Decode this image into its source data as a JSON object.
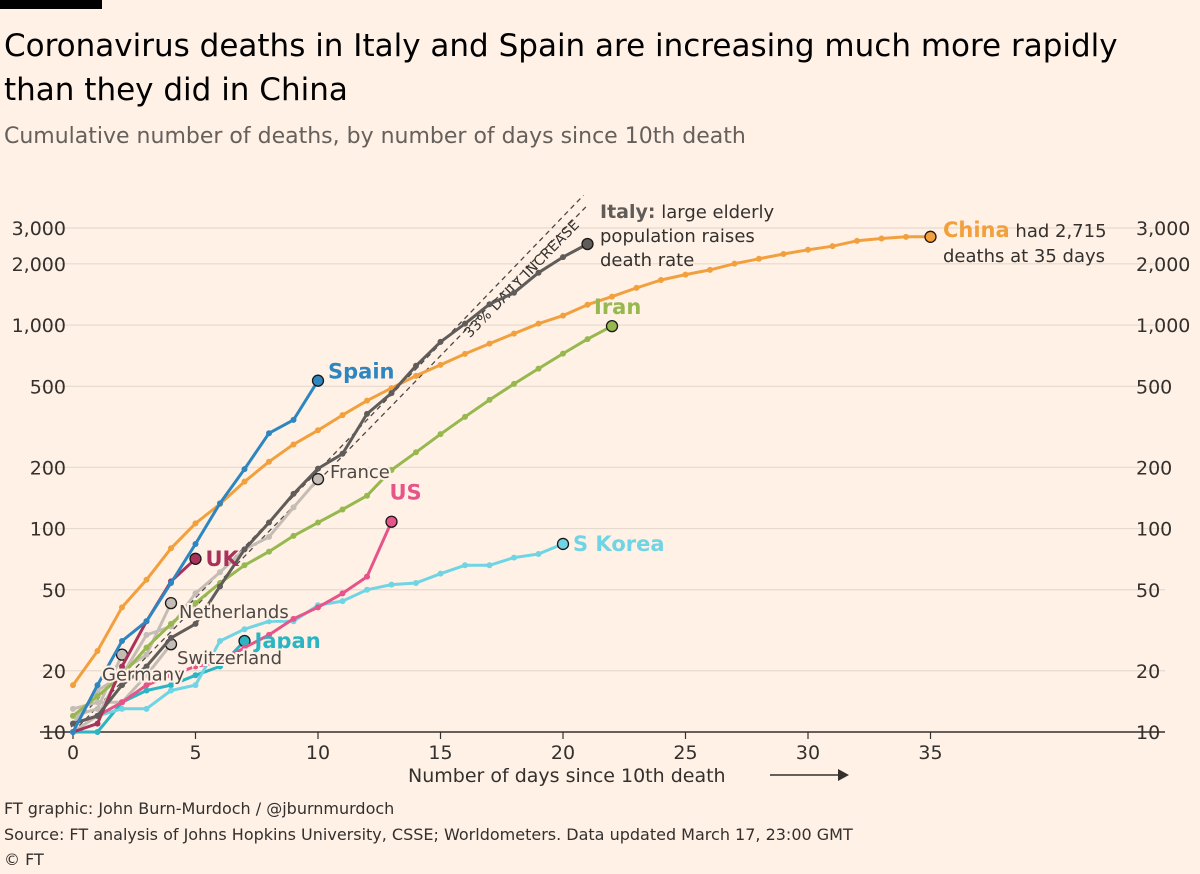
{
  "header": {
    "title": "Coronavirus deaths in Italy and Spain are increasing much more rapidly than they did in China",
    "subtitle": "Cumulative number of deaths, by number of days since 10th death"
  },
  "footer": {
    "credit": "FT graphic: John Burn-Murdoch / @jburnmurdoch",
    "source": "Source: FT analysis of Johns Hopkins University, CSSE; Worldometers. Data updated March 17, 23:00 GMT",
    "copyright": "© FT"
  },
  "chart_data": {
    "type": "line",
    "title": "Coronavirus deaths in Italy and Spain are increasing much more rapidly than they did in China",
    "subtitle": "Cumulative number of deaths, by number of days since 10th death",
    "xlabel": "Number of days since 10th death",
    "ylabel": "",
    "yscale": "log",
    "xlim": [
      0,
      44
    ],
    "ylim": [
      10,
      3500
    ],
    "xticks": [
      0,
      5,
      10,
      15,
      20,
      25,
      30,
      35
    ],
    "yticks": [
      10,
      20,
      50,
      100,
      200,
      500,
      1000,
      2000,
      3000
    ],
    "ytick_labels": [
      "10",
      "20",
      "50",
      "100",
      "200",
      "500",
      "1,000",
      "2,000",
      "3,000"
    ],
    "grid": "horizontal",
    "y_axis_both_sides": true,
    "guide_line": {
      "label": "33% DAILY INCREASE",
      "start": [
        0,
        10
      ],
      "end": [
        21,
        3880
      ]
    },
    "annotations": {
      "italy_bold": "Italy:",
      "italy_line1": " large elderly",
      "italy_line2": "population raises",
      "italy_line3": "death rate",
      "china_bold": "China",
      "china_line1": " had 2,715",
      "china_line2": "deaths at 35 days"
    },
    "series": [
      {
        "name": "China",
        "color": "#f2a03d",
        "label": "China",
        "label_style": "bold",
        "x": [
          0,
          1,
          2,
          3,
          4,
          5,
          6,
          7,
          8,
          9,
          10,
          11,
          12,
          13,
          14,
          15,
          16,
          17,
          18,
          19,
          20,
          21,
          22,
          23,
          24,
          25,
          26,
          27,
          28,
          29,
          30,
          31,
          32,
          33,
          34,
          35
        ],
        "y": [
          17,
          25,
          41,
          56,
          80,
          106,
          132,
          170,
          213,
          259,
          304,
          361,
          425,
          490,
          563,
          637,
          722,
          811,
          908,
          1016,
          1113,
          1259,
          1380,
          1523,
          1665,
          1770,
          1868,
          2004,
          2118,
          2236,
          2345,
          2442,
          2594,
          2663,
          2715,
          2715
        ]
      },
      {
        "name": "Italy",
        "color": "#5f5c5a",
        "label": "",
        "label_style": "bold",
        "x": [
          0,
          1,
          2,
          3,
          4,
          5,
          6,
          7,
          8,
          9,
          10,
          11,
          12,
          13,
          14,
          15,
          16,
          17,
          18,
          19,
          20,
          21
        ],
        "y": [
          11,
          12,
          17,
          21,
          29,
          34,
          52,
          79,
          107,
          148,
          197,
          233,
          366,
          463,
          631,
          827,
          1016,
          1266,
          1441,
          1809,
          2158,
          2503
        ]
      },
      {
        "name": "Spain",
        "color": "#2e86c1",
        "label": "Spain",
        "label_style": "bold",
        "x": [
          0,
          1,
          2,
          3,
          4,
          5,
          6,
          7,
          8,
          9,
          10
        ],
        "y": [
          10,
          17,
          28,
          35,
          54,
          84,
          133,
          196,
          294,
          342,
          533
        ]
      },
      {
        "name": "Iran",
        "color": "#96b84e",
        "label": "Iran",
        "label_style": "bold",
        "x": [
          0,
          1,
          2,
          3,
          4,
          5,
          6,
          7,
          8,
          9,
          10,
          11,
          12,
          13,
          14,
          15,
          16,
          17,
          18,
          19,
          20,
          21,
          22
        ],
        "y": [
          12,
          15,
          19,
          26,
          34,
          43,
          54,
          66,
          77,
          92,
          107,
          124,
          145,
          194,
          237,
          291,
          354,
          429,
          514,
          611,
          724,
          853,
          988
        ]
      },
      {
        "name": "UK",
        "color": "#a8325a",
        "label": "UK",
        "label_style": "bold",
        "x": [
          0,
          1,
          2,
          3,
          4,
          5
        ],
        "y": [
          10,
          11,
          21,
          35,
          55,
          71
        ]
      },
      {
        "name": "US",
        "color": "#e6548a",
        "label": "US",
        "label_style": "bold",
        "x": [
          0,
          1,
          2,
          3,
          4,
          5,
          6,
          7,
          8,
          9,
          10,
          11,
          12,
          13
        ],
        "y": [
          11,
          12,
          14,
          17,
          19,
          21,
          22,
          26,
          30,
          36,
          41,
          48,
          58,
          108
        ]
      },
      {
        "name": "S Korea",
        "color": "#6fd4e4",
        "label": "S Korea",
        "label_style": "bold",
        "x": [
          0,
          1,
          2,
          3,
          4,
          5,
          6,
          7,
          8,
          9,
          10,
          11,
          12,
          13,
          14,
          15,
          16,
          17,
          18,
          19,
          20
        ],
        "y": [
          11,
          12,
          13,
          13,
          16,
          17,
          28,
          32,
          35,
          35,
          42,
          44,
          50,
          53,
          54,
          60,
          66,
          66,
          72,
          75,
          84
        ]
      },
      {
        "name": "Japan",
        "color": "#2bb5c4",
        "label": "Japan",
        "label_style": "bold",
        "x": [
          0,
          1,
          2,
          3,
          4,
          5,
          6,
          7
        ],
        "y": [
          10,
          10,
          14,
          16,
          17,
          19,
          21,
          28
        ]
      },
      {
        "name": "France",
        "color": "#c4bcb5",
        "label": "France",
        "label_style": "normal",
        "x": [
          0,
          1,
          2,
          3,
          4,
          5,
          6,
          7,
          8,
          9,
          10
        ],
        "y": [
          11,
          16,
          19,
          30,
          33,
          48,
          61,
          79,
          91,
          127,
          175
        ]
      },
      {
        "name": "Netherlands",
        "color": "#c4bcb5",
        "label": "Netherlands",
        "label_style": "normal",
        "x": [
          0,
          1,
          2,
          3,
          4
        ],
        "y": [
          10,
          12,
          20,
          24,
          43
        ]
      },
      {
        "name": "Switzerland",
        "color": "#c4bcb5",
        "label": "Switzerland",
        "label_style": "normal",
        "x": [
          0,
          1,
          2,
          3,
          4
        ],
        "y": [
          13,
          14,
          14,
          19,
          27
        ]
      },
      {
        "name": "Germany",
        "color": "#c4bcb5",
        "label": "Germany",
        "label_style": "normal",
        "x": [
          0,
          1,
          2
        ],
        "y": [
          12,
          13,
          24
        ]
      }
    ]
  }
}
